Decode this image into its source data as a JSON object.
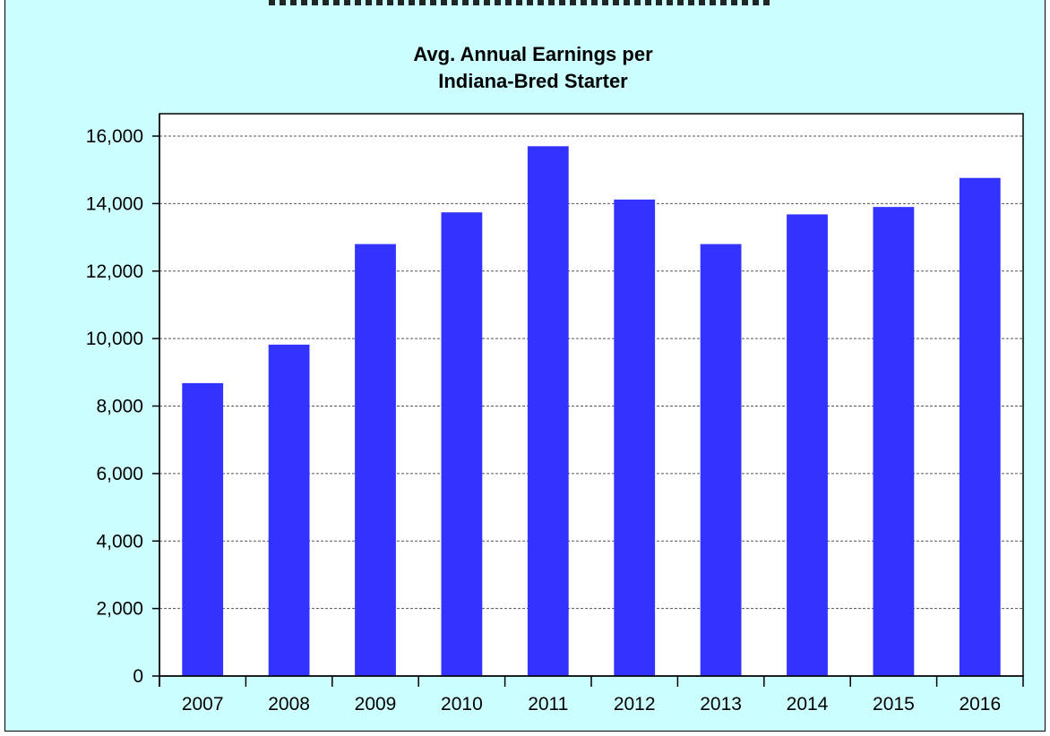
{
  "colors": {
    "background": "#ccffff",
    "plot_area": "#ffffff",
    "bar": "#3333ff",
    "gridline": "#555555",
    "axis": "#000000"
  },
  "chart_data": {
    "type": "bar",
    "title_lines": [
      "Avg. Annual Earnings per",
      "Indiana-Bred Starter"
    ],
    "categories": [
      "2007",
      "2008",
      "2009",
      "2010",
      "2011",
      "2012",
      "2013",
      "2014",
      "2015",
      "2016"
    ],
    "values": [
      8680,
      9820,
      12800,
      13740,
      15700,
      14120,
      12800,
      13680,
      13900,
      14760
    ],
    "ylim": [
      0,
      16000
    ],
    "yticks": [
      0,
      2000,
      4000,
      6000,
      8000,
      10000,
      12000,
      14000,
      16000
    ],
    "ytick_labels": [
      "0",
      "2,000",
      "4,000",
      "6,000",
      "8,000",
      "10,000",
      "12,000",
      "14,000",
      "16,000"
    ],
    "grid": true,
    "legend": "none"
  }
}
